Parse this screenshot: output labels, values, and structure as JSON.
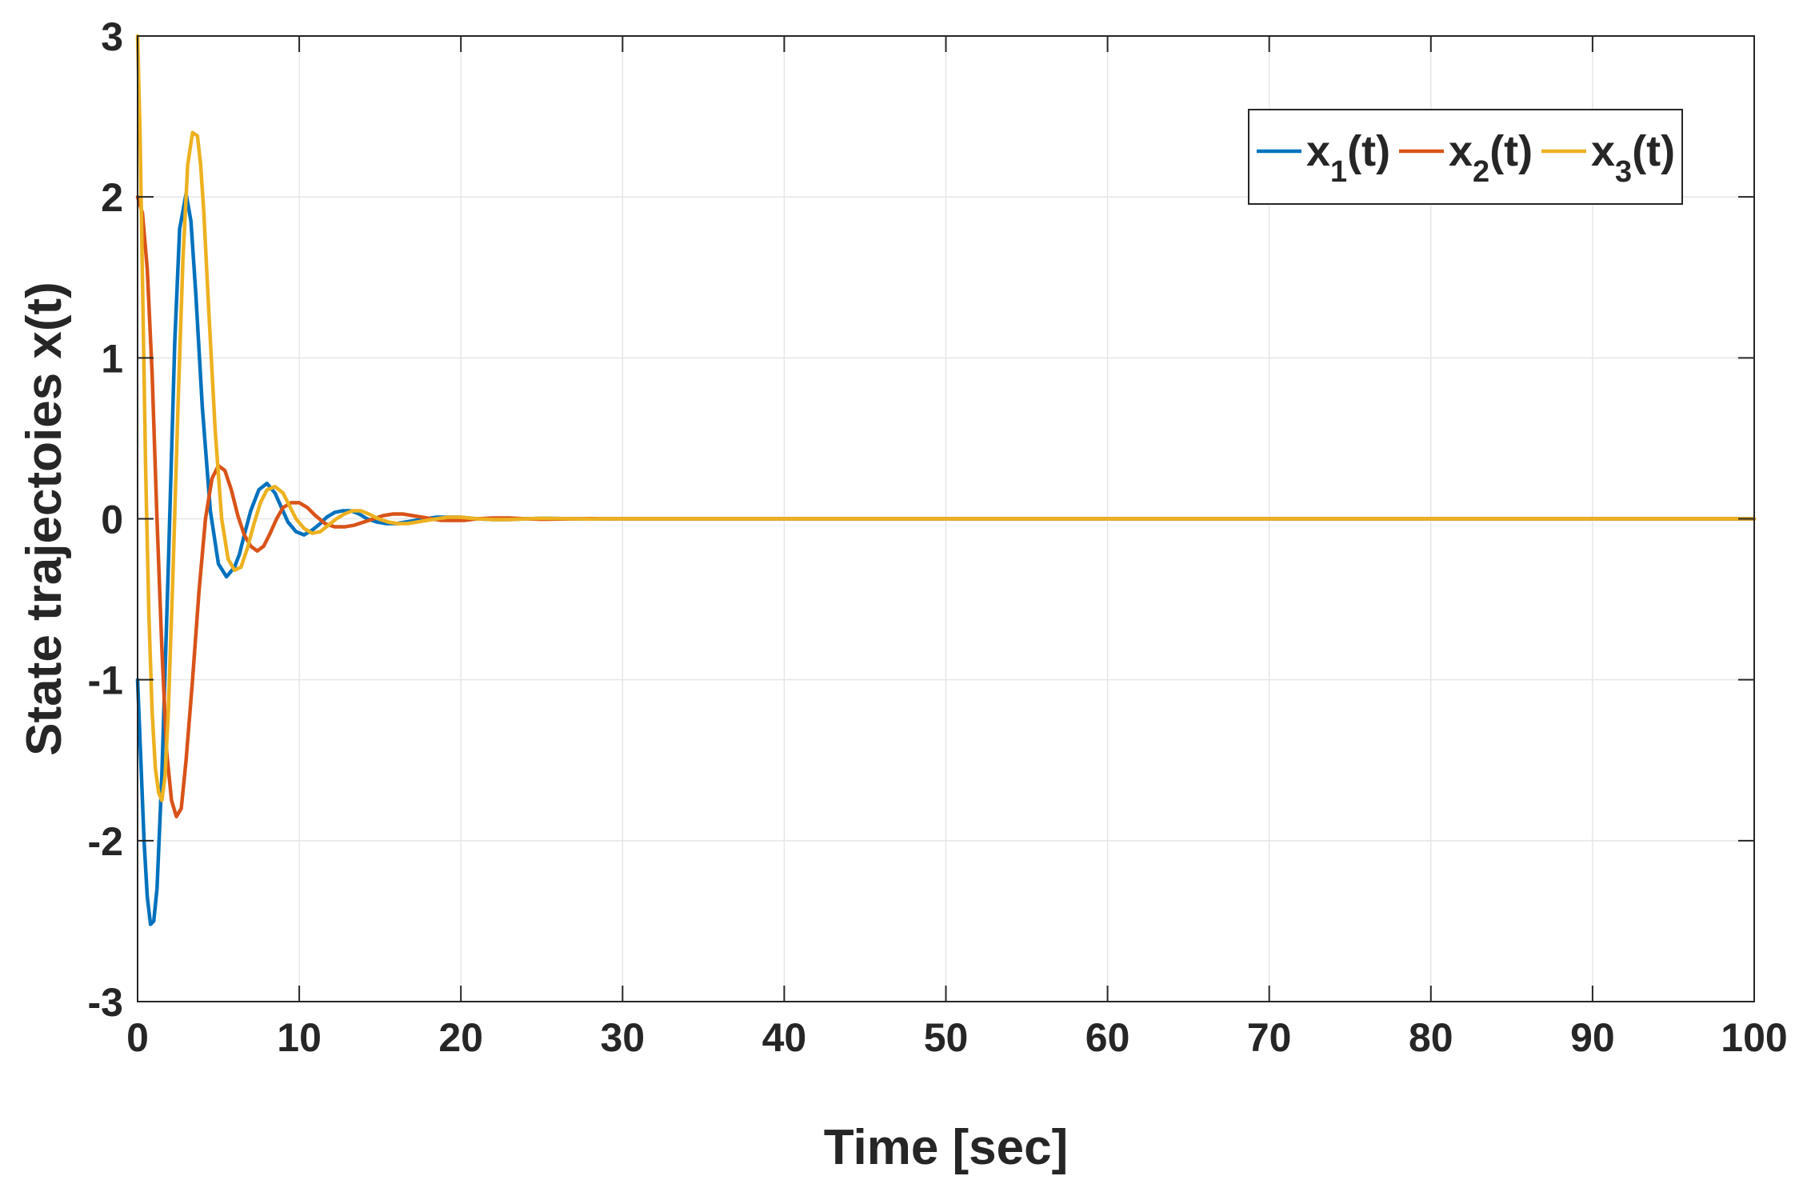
{
  "chart_data": {
    "type": "line",
    "title": "",
    "xlabel": "Time [sec]",
    "ylabel": "State trajectoies x(t)",
    "xlim": [
      0,
      100
    ],
    "ylim": [
      -3,
      3
    ],
    "xticks": [
      0,
      10,
      20,
      30,
      40,
      50,
      60,
      70,
      80,
      90,
      100
    ],
    "yticks": [
      -3,
      -2,
      -1,
      0,
      1,
      2,
      3
    ],
    "grid": true,
    "legend_position": "top-right",
    "legend_orientation": "horizontal",
    "series": [
      {
        "name": "x_1(t)",
        "label_main": "x",
        "label_sub": "1",
        "label_tail": "(t)",
        "color": "#0072BD",
        "x": [
          0,
          0.2,
          0.4,
          0.6,
          0.8,
          1.0,
          1.2,
          1.5,
          1.9,
          2.3,
          2.6,
          3.0,
          3.3,
          3.6,
          4.0,
          4.5,
          5.0,
          5.5,
          6.0,
          6.3,
          6.6,
          7.0,
          7.5,
          8.0,
          8.5,
          8.9,
          9.3,
          9.8,
          10.3,
          10.8,
          11.3,
          11.7,
          12.2,
          12.7,
          13.2,
          13.7,
          14.2,
          14.8,
          15.4,
          16.0,
          16.6,
          17.2,
          17.8,
          18.5,
          19.2,
          20.0,
          21.0,
          22.0,
          23.0,
          24.0,
          25.0,
          26.0,
          27.0,
          28.0,
          29.0,
          30.0,
          35.0,
          40.0,
          50.0,
          60.0,
          70.0,
          80.0,
          90.0,
          100.0
        ],
        "y": [
          -1.0,
          -1.5,
          -2.0,
          -2.35,
          -2.52,
          -2.5,
          -2.3,
          -1.6,
          -0.3,
          1.1,
          1.8,
          2.02,
          1.85,
          1.4,
          0.7,
          0.05,
          -0.28,
          -0.36,
          -0.3,
          -0.22,
          -0.1,
          0.05,
          0.18,
          0.22,
          0.16,
          0.07,
          -0.02,
          -0.08,
          -0.1,
          -0.07,
          -0.03,
          0.01,
          0.04,
          0.05,
          0.05,
          0.03,
          0.0,
          -0.02,
          -0.03,
          -0.03,
          -0.02,
          -0.01,
          0.0,
          0.01,
          0.01,
          0.01,
          0.0,
          -0.005,
          -0.005,
          0.0,
          0.003,
          0.002,
          0.0,
          -0.001,
          0.0,
          0.0,
          0.0,
          0.0,
          0.0,
          0.0,
          0.0,
          0.0,
          0.0,
          0.0
        ]
      },
      {
        "name": "x_2(t)",
        "label_main": "x",
        "label_sub": "2",
        "label_tail": "(t)",
        "color": "#D95319",
        "x": [
          0,
          0.3,
          0.6,
          0.9,
          1.2,
          1.5,
          1.8,
          2.1,
          2.4,
          2.7,
          3.0,
          3.4,
          3.8,
          4.2,
          4.6,
          5.0,
          5.4,
          5.8,
          6.2,
          6.6,
          7.0,
          7.4,
          7.8,
          8.2,
          8.6,
          9.0,
          9.5,
          10.0,
          10.5,
          11.0,
          11.6,
          12.2,
          12.8,
          13.4,
          14.0,
          14.6,
          15.2,
          15.8,
          16.4,
          17.0,
          17.6,
          18.2,
          18.8,
          19.5,
          20.2,
          21.0,
          22.0,
          23.0,
          24.0,
          25.0,
          26.0,
          27.0,
          28.0,
          29.0,
          30.0,
          35.0,
          40.0,
          50.0,
          60.0,
          70.0,
          80.0,
          90.0,
          100.0
        ],
        "y": [
          2.0,
          1.9,
          1.55,
          0.9,
          0.0,
          -0.8,
          -1.45,
          -1.75,
          -1.85,
          -1.8,
          -1.5,
          -1.0,
          -0.45,
          0.0,
          0.25,
          0.33,
          0.3,
          0.18,
          0.02,
          -0.1,
          -0.17,
          -0.2,
          -0.17,
          -0.09,
          0.0,
          0.07,
          0.1,
          0.1,
          0.07,
          0.02,
          -0.03,
          -0.05,
          -0.05,
          -0.04,
          -0.02,
          0.0,
          0.02,
          0.03,
          0.03,
          0.02,
          0.01,
          0.0,
          -0.01,
          -0.01,
          -0.01,
          0.0,
          0.005,
          0.005,
          0.0,
          -0.003,
          -0.002,
          0.0,
          0.001,
          0.0,
          0.0,
          0.0,
          0.0,
          0.0,
          0.0,
          0.0,
          0.0,
          0.0,
          0.0
        ]
      },
      {
        "name": "x_3(t)",
        "label_main": "x",
        "label_sub": "3",
        "label_tail": "(t)",
        "color": "#EDB120",
        "x": [
          0,
          0.15,
          0.3,
          0.5,
          0.7,
          0.9,
          1.1,
          1.3,
          1.5,
          1.7,
          1.9,
          2.2,
          2.5,
          2.8,
          3.1,
          3.4,
          3.7,
          3.9,
          4.1,
          4.4,
          4.8,
          5.2,
          5.6,
          6.0,
          6.4,
          6.8,
          7.2,
          7.6,
          8.0,
          8.5,
          9.0,
          9.4,
          9.8,
          10.3,
          10.8,
          11.3,
          11.8,
          12.3,
          12.8,
          13.3,
          13.8,
          14.3,
          14.9,
          15.5,
          16.1,
          16.7,
          17.3,
          17.9,
          18.5,
          19.2,
          20.0,
          21.0,
          22.0,
          23.0,
          24.0,
          25.0,
          26.0,
          27.0,
          28.0,
          29.0,
          30.0,
          35.0,
          40.0,
          50.0,
          60.0,
          70.0,
          80.0,
          90.0,
          100.0
        ],
        "y": [
          3.0,
          2.4,
          1.5,
          0.3,
          -0.6,
          -1.2,
          -1.55,
          -1.7,
          -1.75,
          -1.6,
          -1.2,
          -0.3,
          0.7,
          1.6,
          2.2,
          2.4,
          2.38,
          2.2,
          1.9,
          1.3,
          0.55,
          0.0,
          -0.25,
          -0.32,
          -0.3,
          -0.18,
          -0.03,
          0.1,
          0.18,
          0.2,
          0.16,
          0.08,
          0.0,
          -0.06,
          -0.09,
          -0.08,
          -0.04,
          0.0,
          0.03,
          0.05,
          0.05,
          0.03,
          0.0,
          -0.02,
          -0.03,
          -0.03,
          -0.02,
          -0.01,
          0.0,
          0.01,
          0.01,
          0.0,
          -0.005,
          -0.005,
          0.0,
          0.003,
          0.002,
          0.0,
          -0.001,
          0.0,
          0.0,
          0.0,
          0.0,
          0.0,
          0.0,
          0.0,
          0.0,
          0.0,
          0.0
        ]
      }
    ]
  }
}
